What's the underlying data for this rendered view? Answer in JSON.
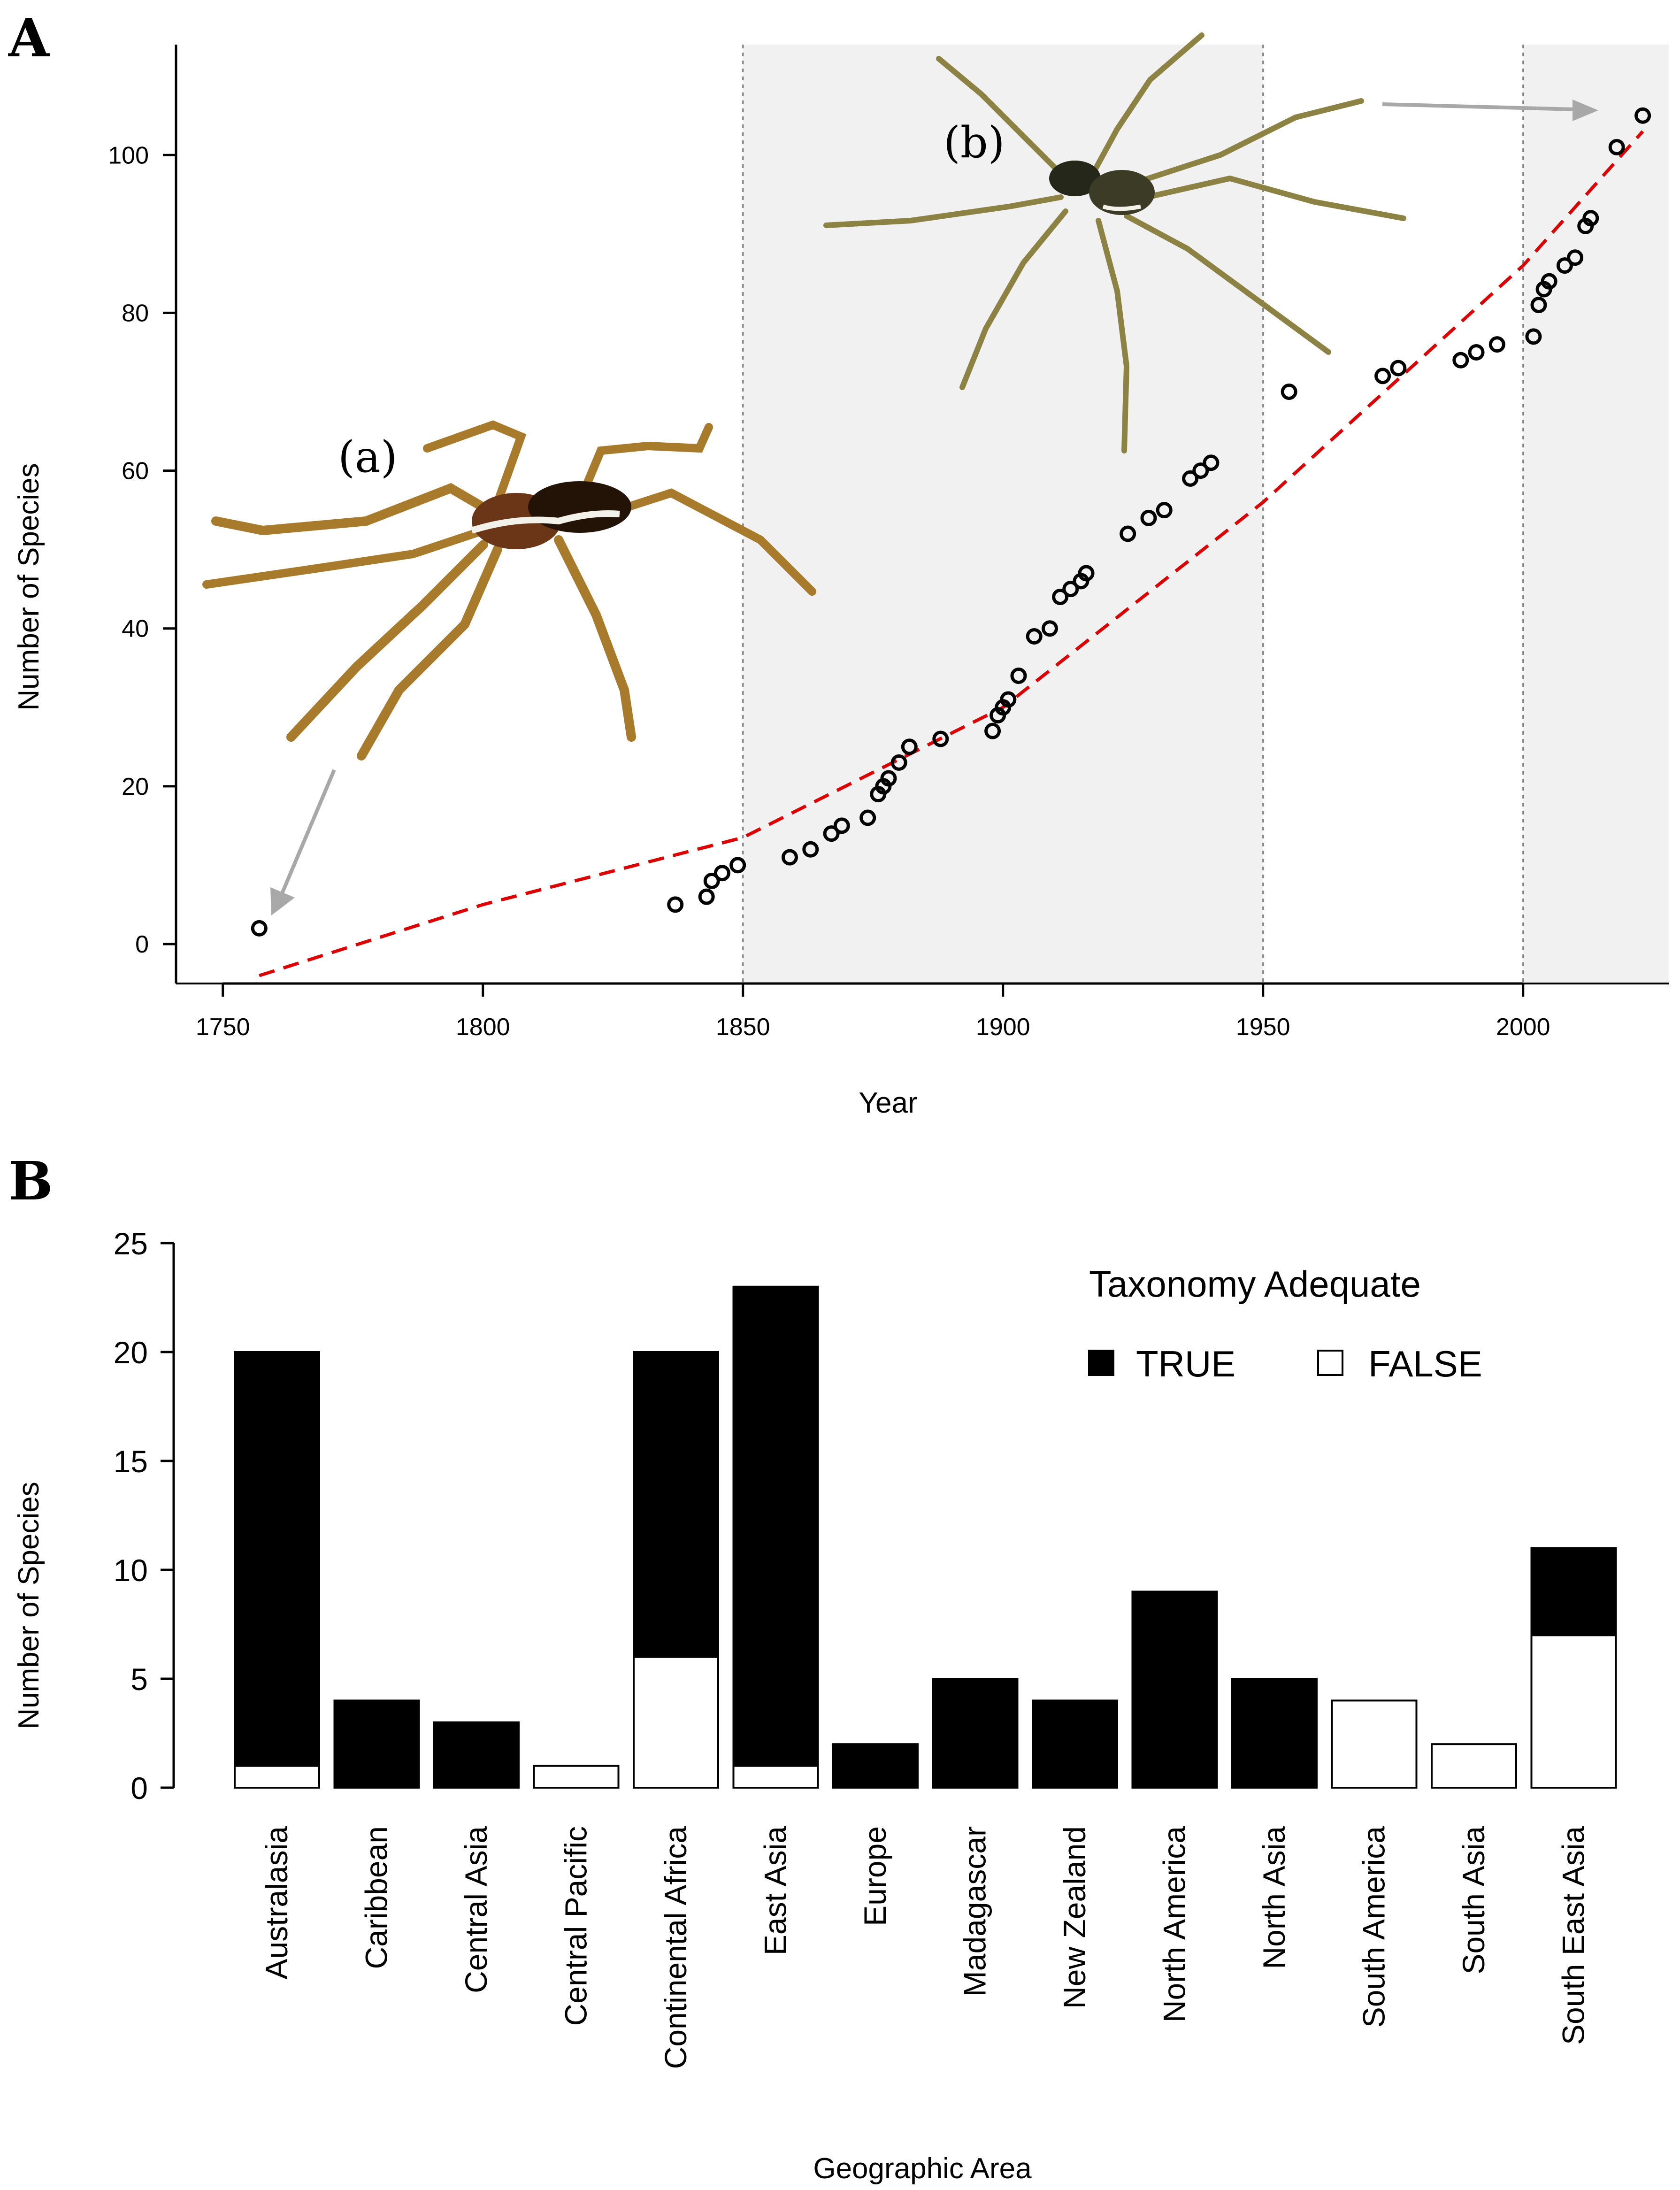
{
  "panels": {
    "a_letter": "A",
    "b_letter": "B"
  },
  "colors": {
    "shade": "#f1f1f1",
    "trend": "#dd0000",
    "arrow": "#a8a8a8",
    "bar_true": "#000000",
    "bar_false": "#ffffff"
  },
  "chart_data": [
    {
      "type": "scatter",
      "title": "",
      "xlabel": "Year",
      "ylabel": "Number of Species",
      "xlim": [
        1741,
        2028
      ],
      "ylim": [
        -5,
        114
      ],
      "xticks": [
        1750,
        1800,
        1850,
        1900,
        1950,
        2000
      ],
      "yticks": [
        0,
        20,
        40,
        60,
        80,
        100
      ],
      "shaded_periods": [
        [
          1850,
          1950
        ],
        [
          2000,
          2028
        ]
      ],
      "period_boundaries": [
        1850,
        1950,
        2000
      ],
      "trend": {
        "style": "dashed",
        "color": "#dd0000",
        "x": [
          1757,
          1800,
          1850,
          1900,
          1950,
          2000,
          2023
        ],
        "y": [
          -4,
          5,
          13.5,
          30,
          56,
          86,
          103
        ]
      },
      "image_labels": [
        "(a)",
        "(b)"
      ],
      "points": [
        [
          1757,
          2
        ],
        [
          1837,
          5
        ],
        [
          1843,
          6
        ],
        [
          1844,
          8
        ],
        [
          1846,
          9
        ],
        [
          1849,
          10
        ],
        [
          1859,
          11
        ],
        [
          1863,
          12
        ],
        [
          1867,
          14
        ],
        [
          1869,
          15
        ],
        [
          1874,
          16
        ],
        [
          1876,
          19
        ],
        [
          1877,
          20
        ],
        [
          1878,
          21
        ],
        [
          1880,
          23
        ],
        [
          1882,
          25
        ],
        [
          1888,
          26
        ],
        [
          1898,
          27
        ],
        [
          1899,
          29
        ],
        [
          1900,
          30
        ],
        [
          1901,
          31
        ],
        [
          1903,
          34
        ],
        [
          1906,
          39
        ],
        [
          1909,
          40
        ],
        [
          1911,
          44
        ],
        [
          1913,
          45
        ],
        [
          1915,
          46
        ],
        [
          1916,
          47
        ],
        [
          1924,
          52
        ],
        [
          1928,
          54
        ],
        [
          1931,
          55
        ],
        [
          1936,
          59
        ],
        [
          1938,
          60
        ],
        [
          1940,
          61
        ],
        [
          1955,
          70
        ],
        [
          1973,
          72
        ],
        [
          1976,
          73
        ],
        [
          1988,
          74
        ],
        [
          1991,
          75
        ],
        [
          1995,
          76
        ],
        [
          2002,
          77
        ],
        [
          2003,
          81
        ],
        [
          2004,
          83
        ],
        [
          2005,
          84
        ],
        [
          2008,
          86
        ],
        [
          2010,
          87
        ],
        [
          2012,
          91
        ],
        [
          2013,
          92
        ],
        [
          2018,
          101
        ],
        [
          2023,
          105
        ]
      ]
    },
    {
      "type": "bar",
      "stacked": true,
      "title": "",
      "xlabel": "Geographic Area",
      "ylabel": "Number of Species",
      "ylim": [
        0,
        25
      ],
      "yticks": [
        0,
        5,
        10,
        15,
        20,
        25
      ],
      "categories": [
        "Australasia",
        "Caribbean",
        "Central Asia",
        "Central Pacific",
        "Continental Africa",
        "East Asia",
        "Europe",
        "Madagascar",
        "New Zealand",
        "North America",
        "North Asia",
        "South America",
        "South Asia",
        "South East Asia"
      ],
      "legend_title": "Taxonomy Adequate",
      "legend_position": "top-right",
      "series": [
        {
          "name": "FALSE",
          "color": "#ffffff",
          "values": [
            1,
            0,
            0,
            1,
            6,
            1,
            0,
            0,
            0,
            0,
            0,
            4,
            2,
            7
          ]
        },
        {
          "name": "TRUE",
          "color": "#000000",
          "values": [
            19,
            4,
            3,
            0,
            14,
            22,
            2,
            5,
            4,
            9,
            5,
            0,
            0,
            4
          ]
        }
      ]
    }
  ]
}
